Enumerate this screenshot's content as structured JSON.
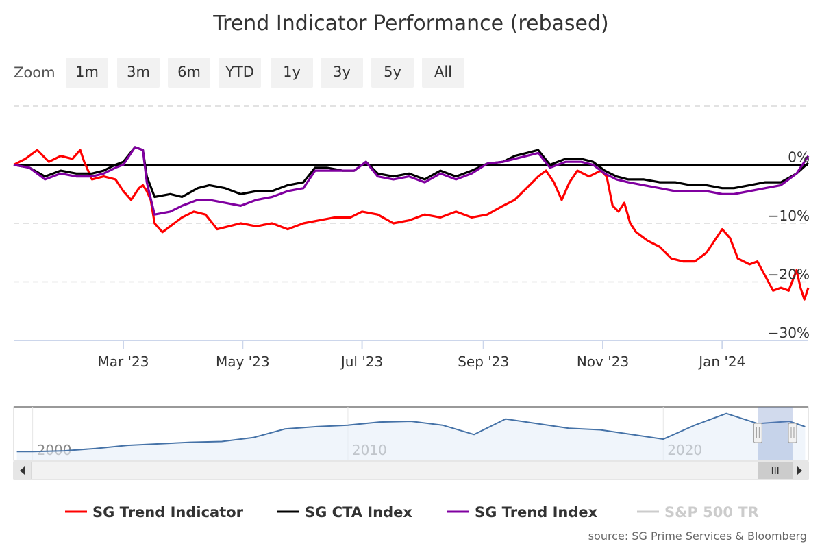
{
  "chart_data": {
    "type": "line",
    "title": "Trend Indicator Performance (rebased)",
    "zoom": {
      "label": "Zoom",
      "buttons": [
        "1m",
        "3m",
        "6m",
        "YTD",
        "1y",
        "3y",
        "5y",
        "All"
      ]
    },
    "x_ticks": [
      "Mar '23",
      "May '23",
      "Jul '23",
      "Sep '23",
      "Nov '23",
      "Jan '24"
    ],
    "x_tick_days": [
      56,
      117,
      178,
      240,
      301,
      362
    ],
    "x_range_days": [
      0,
      406
    ],
    "y_ticks": [
      {
        "value": 0,
        "label": "0%"
      },
      {
        "value": -10,
        "label": "−10%"
      },
      {
        "value": -20,
        "label": "−20%"
      },
      {
        "value": -30,
        "label": "−30%"
      }
    ],
    "ylim": [
      -30,
      10
    ],
    "series": [
      {
        "name": "SG Trend Indicator",
        "color": "#ff0000",
        "points": [
          [
            0,
            0
          ],
          [
            6,
            1
          ],
          [
            12,
            2.5
          ],
          [
            18,
            0.5
          ],
          [
            24,
            1.5
          ],
          [
            30,
            1
          ],
          [
            34,
            2.5
          ],
          [
            36,
            0.5
          ],
          [
            40,
            -2.5
          ],
          [
            46,
            -2
          ],
          [
            52,
            -2.5
          ],
          [
            56,
            -4.5
          ],
          [
            60,
            -6
          ],
          [
            64,
            -4
          ],
          [
            66,
            -3.5
          ],
          [
            68,
            -4.5
          ],
          [
            70,
            -6
          ],
          [
            72,
            -10
          ],
          [
            76,
            -11.5
          ],
          [
            80,
            -10.5
          ],
          [
            86,
            -9
          ],
          [
            92,
            -8
          ],
          [
            98,
            -8.5
          ],
          [
            104,
            -11
          ],
          [
            110,
            -10.5
          ],
          [
            116,
            -10
          ],
          [
            124,
            -10.5
          ],
          [
            132,
            -10
          ],
          [
            140,
            -11
          ],
          [
            148,
            -10
          ],
          [
            156,
            -9.5
          ],
          [
            164,
            -9
          ],
          [
            172,
            -9
          ],
          [
            178,
            -8
          ],
          [
            186,
            -8.5
          ],
          [
            194,
            -10
          ],
          [
            202,
            -9.5
          ],
          [
            210,
            -8.5
          ],
          [
            218,
            -9
          ],
          [
            226,
            -8
          ],
          [
            234,
            -9
          ],
          [
            242,
            -8.5
          ],
          [
            250,
            -7
          ],
          [
            256,
            -6
          ],
          [
            262,
            -4
          ],
          [
            268,
            -2
          ],
          [
            272,
            -1
          ],
          [
            276,
            -3
          ],
          [
            280,
            -6
          ],
          [
            284,
            -3
          ],
          [
            288,
            -1
          ],
          [
            294,
            -2
          ],
          [
            300,
            -1
          ],
          [
            303,
            -2
          ],
          [
            306,
            -7
          ],
          [
            309,
            -8
          ],
          [
            312,
            -6.5
          ],
          [
            315,
            -10
          ],
          [
            318,
            -11.5
          ],
          [
            324,
            -13
          ],
          [
            330,
            -14
          ],
          [
            336,
            -16
          ],
          [
            342,
            -16.5
          ],
          [
            348,
            -16.5
          ],
          [
            354,
            -15
          ],
          [
            358,
            -13
          ],
          [
            362,
            -11
          ],
          [
            366,
            -12.5
          ],
          [
            370,
            -16
          ],
          [
            376,
            -17
          ],
          [
            380,
            -16.5
          ],
          [
            384,
            -19
          ],
          [
            388,
            -21.5
          ],
          [
            392,
            -21
          ],
          [
            396,
            -21.5
          ],
          [
            400,
            -18
          ],
          [
            402,
            -21
          ],
          [
            404,
            -23
          ],
          [
            406,
            -21
          ]
        ]
      },
      {
        "name": "SG CTA Index",
        "color": "#000000",
        "points": [
          [
            0,
            0
          ],
          [
            8,
            -0.5
          ],
          [
            16,
            -2
          ],
          [
            24,
            -1
          ],
          [
            32,
            -1.5
          ],
          [
            40,
            -1.5
          ],
          [
            46,
            -1
          ],
          [
            52,
            0
          ],
          [
            56,
            0.5
          ],
          [
            62,
            3
          ],
          [
            66,
            2.5
          ],
          [
            68,
            -2
          ],
          [
            72,
            -5.5
          ],
          [
            80,
            -5
          ],
          [
            86,
            -5.5
          ],
          [
            94,
            -4
          ],
          [
            100,
            -3.5
          ],
          [
            108,
            -4
          ],
          [
            116,
            -5
          ],
          [
            124,
            -4.5
          ],
          [
            132,
            -4.5
          ],
          [
            140,
            -3.5
          ],
          [
            148,
            -3
          ],
          [
            154,
            -0.5
          ],
          [
            160,
            -0.5
          ],
          [
            168,
            -1
          ],
          [
            174,
            -1
          ],
          [
            180,
            0.5
          ],
          [
            186,
            -1.5
          ],
          [
            194,
            -2
          ],
          [
            202,
            -1.5
          ],
          [
            210,
            -2.5
          ],
          [
            218,
            -1
          ],
          [
            226,
            -2
          ],
          [
            234,
            -1
          ],
          [
            242,
            0.2
          ],
          [
            250,
            0.5
          ],
          [
            256,
            1.5
          ],
          [
            262,
            2
          ],
          [
            268,
            2.5
          ],
          [
            274,
            0
          ],
          [
            282,
            1
          ],
          [
            290,
            1
          ],
          [
            296,
            0.5
          ],
          [
            302,
            -1
          ],
          [
            308,
            -2
          ],
          [
            314,
            -2.5
          ],
          [
            322,
            -2.5
          ],
          [
            330,
            -3
          ],
          [
            338,
            -3
          ],
          [
            346,
            -3.5
          ],
          [
            354,
            -3.5
          ],
          [
            362,
            -4
          ],
          [
            368,
            -4
          ],
          [
            376,
            -3.5
          ],
          [
            384,
            -3
          ],
          [
            392,
            -3
          ],
          [
            400,
            -1.5
          ],
          [
            406,
            0.3
          ]
        ]
      },
      {
        "name": "SG Trend Index",
        "color": "#8000a0",
        "points": [
          [
            0,
            0
          ],
          [
            8,
            -0.5
          ],
          [
            16,
            -2.5
          ],
          [
            24,
            -1.5
          ],
          [
            32,
            -2
          ],
          [
            40,
            -2
          ],
          [
            46,
            -1.5
          ],
          [
            52,
            -0.5
          ],
          [
            56,
            0
          ],
          [
            62,
            3
          ],
          [
            66,
            2.5
          ],
          [
            68,
            -3
          ],
          [
            72,
            -8.5
          ],
          [
            80,
            -8
          ],
          [
            86,
            -7
          ],
          [
            94,
            -6
          ],
          [
            100,
            -6
          ],
          [
            108,
            -6.5
          ],
          [
            116,
            -7
          ],
          [
            124,
            -6
          ],
          [
            132,
            -5.5
          ],
          [
            140,
            -4.5
          ],
          [
            148,
            -4
          ],
          [
            154,
            -1
          ],
          [
            160,
            -1
          ],
          [
            168,
            -1
          ],
          [
            174,
            -1
          ],
          [
            180,
            0.5
          ],
          [
            186,
            -2
          ],
          [
            194,
            -2.5
          ],
          [
            202,
            -2
          ],
          [
            210,
            -3
          ],
          [
            218,
            -1.5
          ],
          [
            226,
            -2.5
          ],
          [
            234,
            -1.5
          ],
          [
            242,
            0.2
          ],
          [
            250,
            0.5
          ],
          [
            256,
            1
          ],
          [
            262,
            1.5
          ],
          [
            268,
            2
          ],
          [
            274,
            -0.5
          ],
          [
            282,
            0.5
          ],
          [
            290,
            0.5
          ],
          [
            296,
            0
          ],
          [
            302,
            -1.5
          ],
          [
            308,
            -2.5
          ],
          [
            314,
            -3
          ],
          [
            322,
            -3.5
          ],
          [
            330,
            -4
          ],
          [
            338,
            -4.5
          ],
          [
            346,
            -4.5
          ],
          [
            354,
            -4.5
          ],
          [
            362,
            -5
          ],
          [
            368,
            -5
          ],
          [
            376,
            -4.5
          ],
          [
            384,
            -4
          ],
          [
            392,
            -3.5
          ],
          [
            400,
            -1.5
          ],
          [
            406,
            1.5
          ]
        ]
      },
      {
        "name": "S&P 500 TR",
        "color": "#cccccc",
        "visible": false,
        "points": []
      }
    ],
    "navigator": {
      "labels": [
        "2000",
        "2010",
        "2020"
      ],
      "label_years": [
        2000,
        2010,
        2020
      ],
      "year_range": [
        1999.4,
        2024.6
      ],
      "selected_range": [
        2023.0,
        2024.1
      ],
      "series": [
        [
          1999.5,
          6
        ],
        [
          2000,
          6
        ],
        [
          2001,
          7
        ],
        [
          2002,
          10
        ],
        [
          2003,
          14
        ],
        [
          2004,
          16
        ],
        [
          2005,
          18
        ],
        [
          2006,
          19
        ],
        [
          2007,
          24
        ],
        [
          2008,
          35
        ],
        [
          2009,
          38
        ],
        [
          2010,
          40
        ],
        [
          2011,
          44
        ],
        [
          2012,
          45
        ],
        [
          2013,
          40
        ],
        [
          2014,
          28
        ],
        [
          2015,
          48
        ],
        [
          2016,
          42
        ],
        [
          2017,
          36
        ],
        [
          2018,
          34
        ],
        [
          2019,
          28
        ],
        [
          2020,
          22
        ],
        [
          2021,
          40
        ],
        [
          2022,
          55
        ],
        [
          2023,
          42
        ],
        [
          2024,
          45
        ],
        [
          2024.5,
          38
        ]
      ]
    },
    "legend": [
      "SG Trend Indicator",
      "SG CTA Index",
      "SG Trend Index",
      "S&P 500 TR"
    ],
    "source": "source: SG Prime Services & Bloomberg"
  }
}
